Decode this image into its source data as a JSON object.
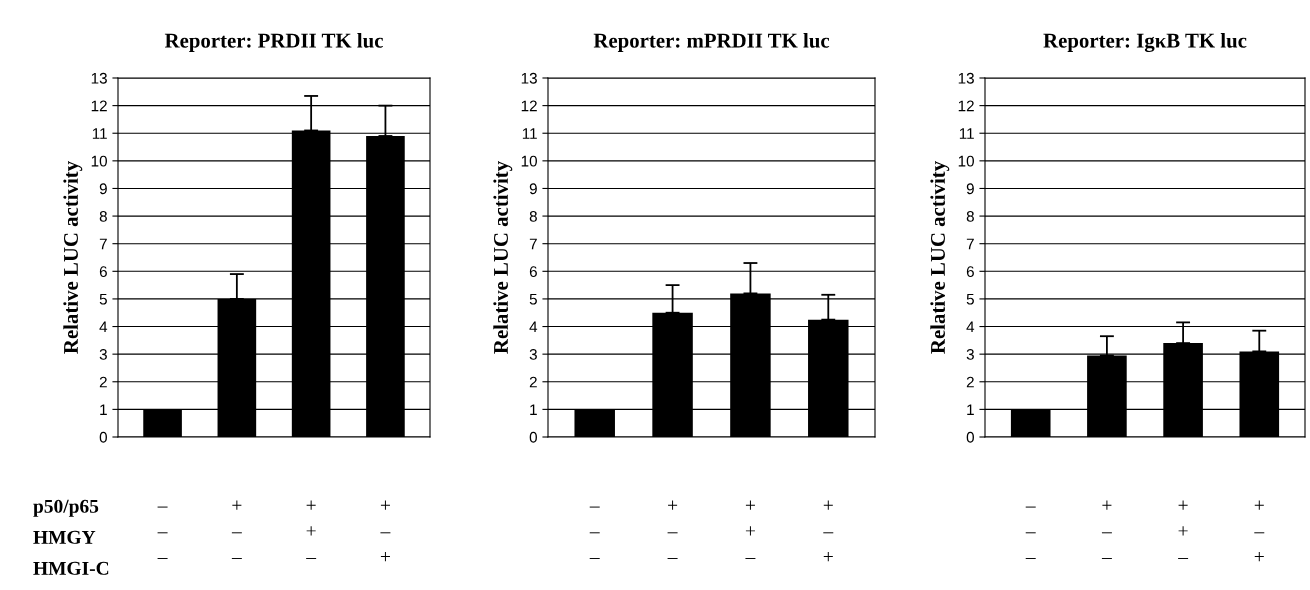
{
  "chart_data": [
    {
      "type": "bar",
      "title": "Reporter: PRDII TK luc",
      "ylabel": "Relative LUC activity",
      "categories": [
        "–\n–\n–",
        "+\n–\n–",
        "+\n+\n–",
        "+\n–\n+"
      ],
      "values": [
        1,
        5.0,
        11.1,
        10.9
      ],
      "errors": [
        null,
        [
          5.0,
          5.9
        ],
        [
          11.1,
          12.35
        ],
        [
          10.9,
          12.0
        ]
      ],
      "color": "#000000",
      "ylim": [
        0,
        13
      ],
      "yticks": [
        0,
        1,
        2,
        3,
        4,
        5,
        6,
        7,
        8,
        9,
        10,
        11,
        12,
        13
      ],
      "grid": "y",
      "annotations": [
        "p50/p65",
        "HMGY",
        "HMGI-C"
      ]
    },
    {
      "type": "bar",
      "title": "Reporter: mPRDII TK luc",
      "ylabel": "Relative LUC activity",
      "categories": [
        "–\n–\n–",
        "+\n–\n–",
        "+\n+\n–",
        "+\n–\n+"
      ],
      "values": [
        1,
        4.5,
        5.2,
        4.25
      ],
      "errors": [
        null,
        [
          4.5,
          5.5
        ],
        [
          5.2,
          6.3
        ],
        [
          4.25,
          5.15
        ]
      ],
      "color": "#000000",
      "ylim": [
        0,
        13
      ],
      "yticks": [
        0,
        1,
        2,
        3,
        4,
        5,
        6,
        7,
        8,
        9,
        10,
        11,
        12,
        13
      ],
      "grid": "y"
    },
    {
      "type": "bar",
      "title": "Reporter: IgκB TK luc",
      "ylabel": "Relative LUC activity",
      "categories": [
        "–\n–\n–",
        "+\n–\n–",
        "+\n+\n–",
        "+\n–\n+"
      ],
      "values": [
        1,
        2.95,
        3.4,
        3.1
      ],
      "errors": [
        null,
        [
          2.95,
          3.65
        ],
        [
          3.4,
          4.15
        ],
        [
          3.1,
          3.85
        ]
      ],
      "color": "#000000",
      "ylim": [
        0,
        13
      ],
      "yticks": [
        0,
        1,
        2,
        3,
        4,
        5,
        6,
        7,
        8,
        9,
        10,
        11,
        12,
        13
      ],
      "grid": "y"
    }
  ]
}
